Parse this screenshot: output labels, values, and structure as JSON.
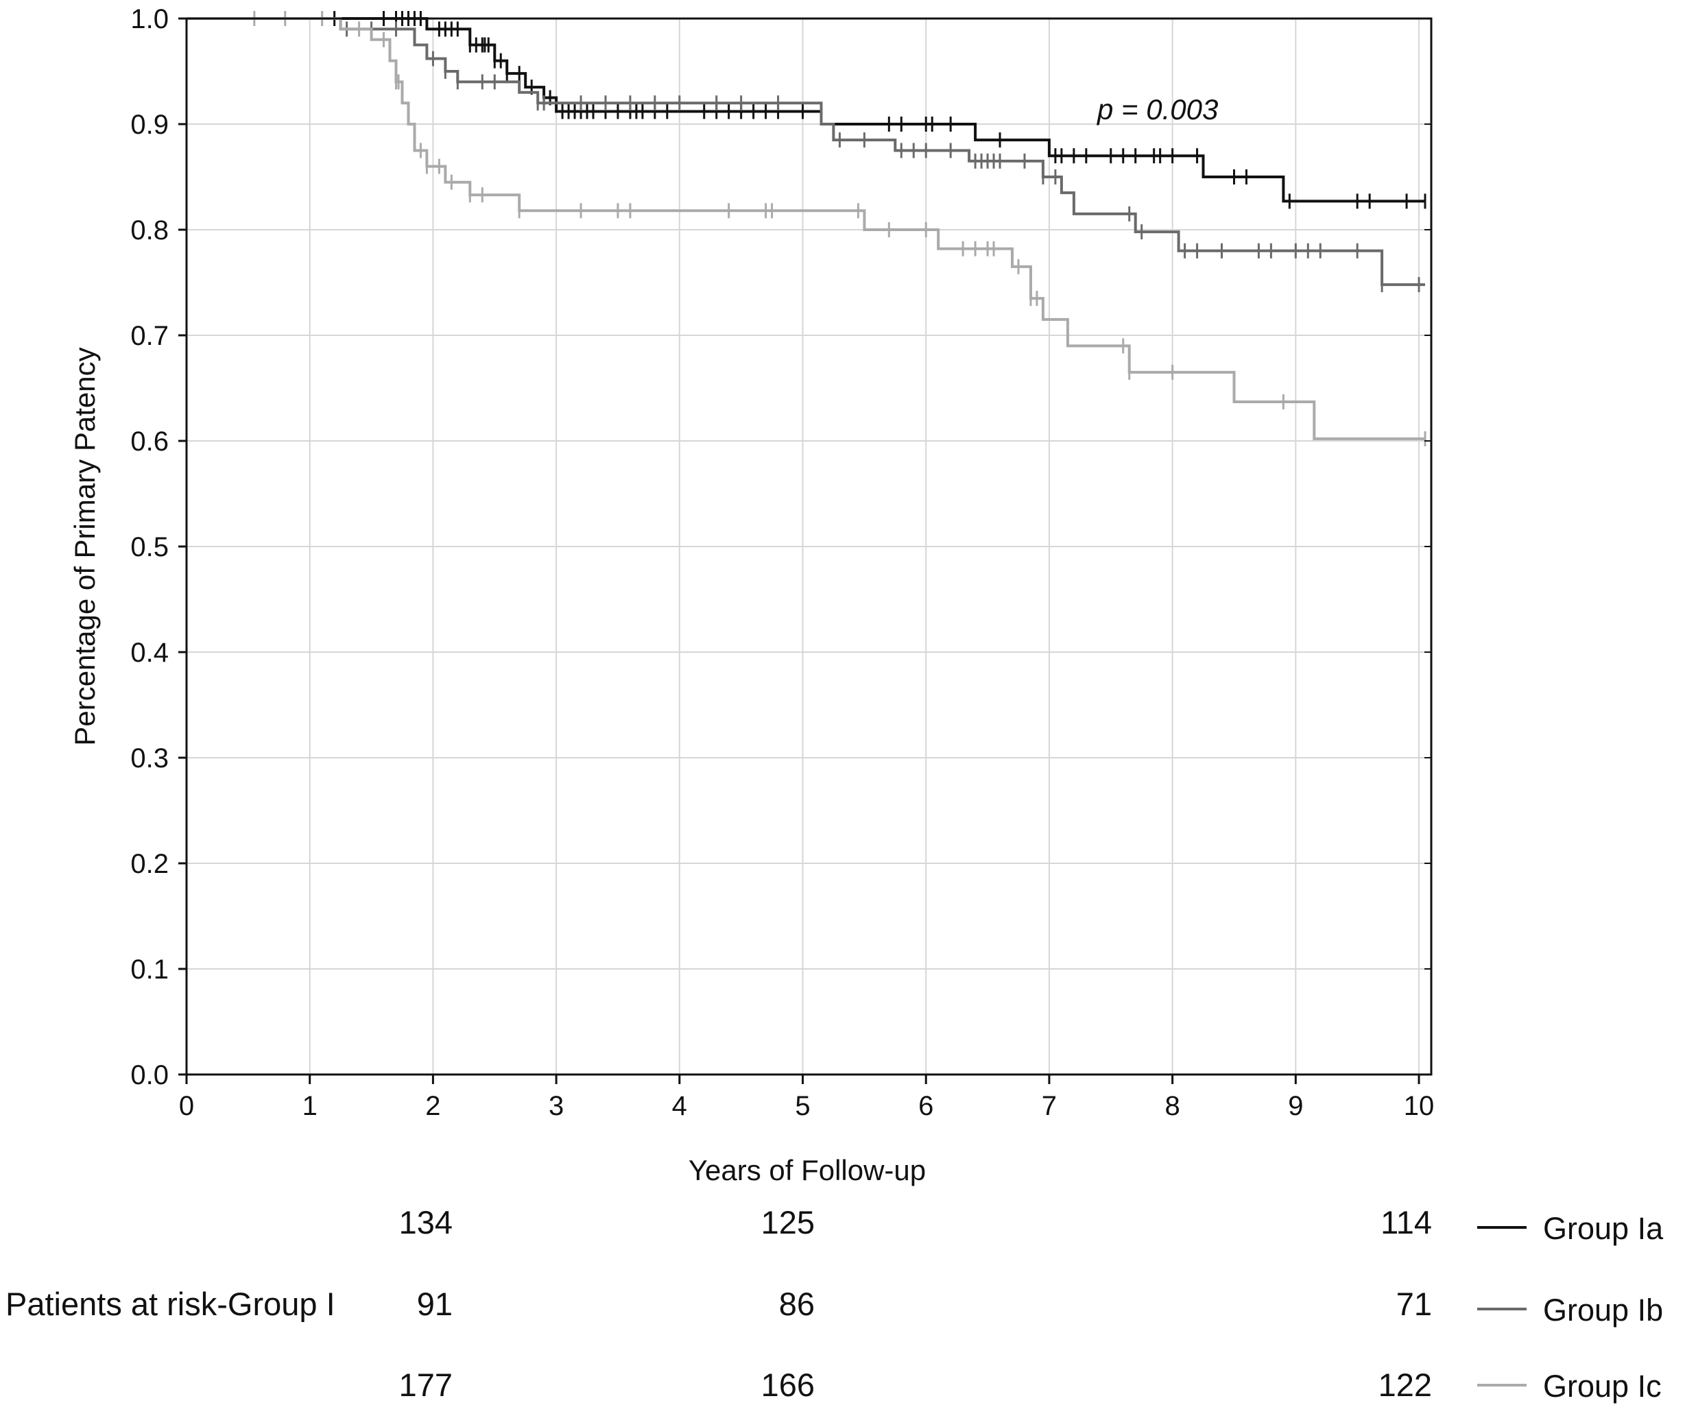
{
  "chart_data": {
    "type": "line",
    "subtype": "kaplan-meier-step",
    "title": "",
    "xlabel": "Years of Follow-up",
    "ylabel": "Percentage of Primary Patency",
    "xlim": [
      0,
      10.1
    ],
    "ylim": [
      0,
      1.0
    ],
    "xticks": [
      "0",
      "1",
      "2",
      "3",
      "4",
      "5",
      "6",
      "7",
      "8",
      "9",
      "10"
    ],
    "yticks": [
      "0.0",
      "0.1",
      "0.2",
      "0.3",
      "0.4",
      "0.5",
      "0.6",
      "0.7",
      "0.8",
      "0.9",
      "1.0"
    ],
    "grid": true,
    "annotation": "p = 0.003",
    "series": [
      {
        "name": "Group Ia",
        "color": "#111111",
        "steps": [
          [
            0,
            1.0
          ],
          [
            1.95,
            0.99
          ],
          [
            2.3,
            0.975
          ],
          [
            2.5,
            0.96
          ],
          [
            2.6,
            0.948
          ],
          [
            2.75,
            0.935
          ],
          [
            2.9,
            0.925
          ],
          [
            3.0,
            0.912
          ],
          [
            5.15,
            0.9
          ],
          [
            6.4,
            0.885
          ],
          [
            7.0,
            0.87
          ],
          [
            8.25,
            0.85
          ],
          [
            8.9,
            0.827
          ],
          [
            10.05,
            0.827
          ]
        ],
        "censored": [
          1.2,
          1.6,
          1.7,
          1.75,
          1.8,
          1.85,
          1.9,
          2.05,
          2.1,
          2.15,
          2.2,
          2.3,
          2.35,
          2.4,
          2.42,
          2.45,
          2.5,
          2.55,
          2.6,
          2.7,
          2.8,
          2.9,
          2.95,
          3.05,
          3.1,
          3.15,
          3.2,
          3.25,
          3.3,
          3.4,
          3.5,
          3.6,
          3.65,
          3.7,
          3.8,
          3.9,
          4.2,
          4.3,
          4.4,
          4.5,
          4.6,
          4.7,
          4.8,
          5.0,
          5.7,
          5.8,
          6.0,
          6.05,
          6.2,
          6.6,
          7.05,
          7.1,
          7.2,
          7.3,
          7.5,
          7.6,
          7.7,
          7.85,
          7.9,
          8.0,
          8.2,
          8.5,
          8.6,
          8.95,
          9.5,
          9.6,
          9.9,
          10.05
        ]
      },
      {
        "name": "Group Ib",
        "color": "#6a6a6a",
        "steps": [
          [
            0,
            1.0
          ],
          [
            1.25,
            0.99
          ],
          [
            1.85,
            0.975
          ],
          [
            1.95,
            0.962
          ],
          [
            2.1,
            0.95
          ],
          [
            2.2,
            0.94
          ],
          [
            2.7,
            0.93
          ],
          [
            2.85,
            0.92
          ],
          [
            5.15,
            0.9
          ],
          [
            5.25,
            0.885
          ],
          [
            5.75,
            0.875
          ],
          [
            6.35,
            0.865
          ],
          [
            6.95,
            0.85
          ],
          [
            7.1,
            0.835
          ],
          [
            7.2,
            0.815
          ],
          [
            7.7,
            0.798
          ],
          [
            8.05,
            0.78
          ],
          [
            9.7,
            0.748
          ],
          [
            10.05,
            0.748
          ]
        ],
        "censored": [
          1.3,
          1.5,
          1.7,
          2.0,
          2.1,
          2.2,
          2.4,
          2.5,
          2.85,
          2.9,
          3.2,
          3.4,
          3.6,
          3.8,
          4.0,
          4.3,
          4.5,
          4.8,
          5.3,
          5.5,
          5.8,
          5.9,
          6.0,
          6.2,
          6.4,
          6.45,
          6.5,
          6.55,
          6.6,
          6.8,
          6.95,
          7.05,
          7.65,
          7.75,
          8.1,
          8.2,
          8.4,
          8.7,
          8.8,
          9.0,
          9.1,
          9.2,
          9.5,
          9.7,
          10.0
        ]
      },
      {
        "name": "Group Ic",
        "color": "#aaaaaa",
        "steps": [
          [
            0,
            1.0
          ],
          [
            1.25,
            0.99
          ],
          [
            1.5,
            0.98
          ],
          [
            1.65,
            0.96
          ],
          [
            1.7,
            0.94
          ],
          [
            1.75,
            0.92
          ],
          [
            1.8,
            0.9
          ],
          [
            1.85,
            0.875
          ],
          [
            1.95,
            0.86
          ],
          [
            2.1,
            0.845
          ],
          [
            2.3,
            0.833
          ],
          [
            2.7,
            0.818
          ],
          [
            5.5,
            0.8
          ],
          [
            6.1,
            0.782
          ],
          [
            6.7,
            0.765
          ],
          [
            6.85,
            0.735
          ],
          [
            6.95,
            0.715
          ],
          [
            7.15,
            0.69
          ],
          [
            7.65,
            0.665
          ],
          [
            8.5,
            0.637
          ],
          [
            9.15,
            0.602
          ],
          [
            10.05,
            0.602
          ]
        ],
        "censored": [
          0.55,
          0.8,
          1.1,
          1.4,
          1.6,
          1.7,
          1.72,
          1.9,
          1.95,
          2.05,
          2.15,
          2.3,
          2.4,
          2.7,
          3.2,
          3.5,
          3.6,
          4.4,
          4.7,
          4.75,
          5.45,
          5.7,
          6.0,
          6.3,
          6.4,
          6.5,
          6.55,
          6.75,
          6.85,
          6.9,
          7.6,
          7.65,
          8.0,
          8.9,
          10.05
        ]
      }
    ],
    "risk_table": {
      "label": "Patients at risk-Group I",
      "rows": [
        {
          "group": "Group Ia",
          "values": [
            "134",
            "125",
            "114"
          ]
        },
        {
          "group": "Group Ib",
          "values": [
            "91",
            "86",
            "71"
          ]
        },
        {
          "group": "Group Ic",
          "values": [
            "177",
            "166",
            "122"
          ]
        }
      ]
    },
    "legend": {
      "placement": "bottom-right",
      "entries": [
        "Group Ia",
        "Group Ib",
        "Group Ic"
      ]
    }
  }
}
